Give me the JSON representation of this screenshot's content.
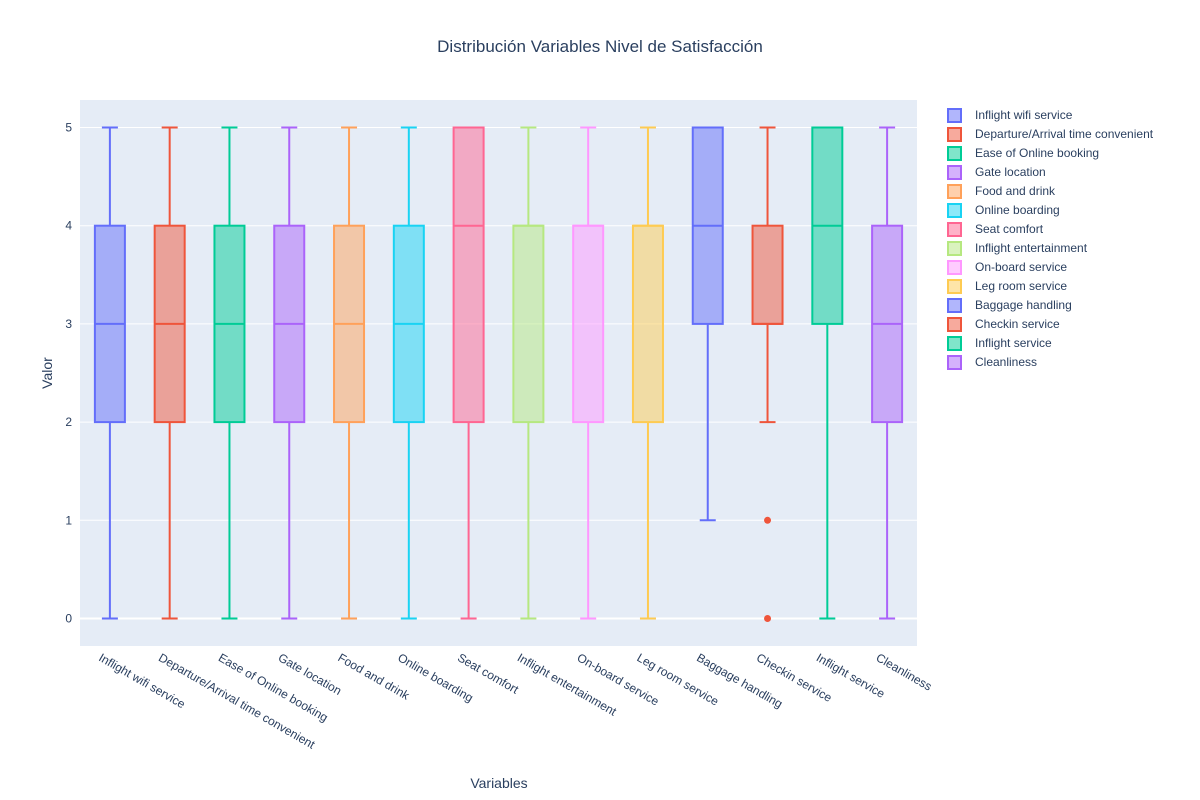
{
  "chart_data": {
    "type": "box",
    "title": "Distribución Variables Nivel de Satisfacción",
    "xlabel": "Variables",
    "ylabel": "Valor",
    "ylim": [
      -0.28,
      5.28
    ],
    "yticks": [
      0,
      1,
      2,
      3,
      4,
      5
    ],
    "grid": true,
    "legend_position": "right",
    "series": [
      {
        "name": "Inflight wifi service",
        "color": "#636efa",
        "min": 0,
        "q1": 2,
        "median": 3,
        "q3": 4,
        "max": 5,
        "outliers": []
      },
      {
        "name": "Departure/Arrival time convenient",
        "color": "#EF553B",
        "min": 0,
        "q1": 2,
        "median": 3,
        "q3": 4,
        "max": 5,
        "outliers": []
      },
      {
        "name": "Ease of Online booking",
        "color": "#00cc96",
        "min": 0,
        "q1": 2,
        "median": 3,
        "q3": 4,
        "max": 5,
        "outliers": []
      },
      {
        "name": "Gate location",
        "color": "#ab63fa",
        "min": 0,
        "q1": 2,
        "median": 3,
        "q3": 4,
        "max": 5,
        "outliers": []
      },
      {
        "name": "Food and drink",
        "color": "#FFA15A",
        "min": 0,
        "q1": 2,
        "median": 3,
        "q3": 4,
        "max": 5,
        "outliers": []
      },
      {
        "name": "Online boarding",
        "color": "#19d3f3",
        "min": 0,
        "q1": 2,
        "median": 3,
        "q3": 4,
        "max": 5,
        "outliers": []
      },
      {
        "name": "Seat comfort",
        "color": "#FF6692",
        "min": 0,
        "q1": 2,
        "median": 4,
        "q3": 5,
        "max": 5,
        "outliers": []
      },
      {
        "name": "Inflight entertainment",
        "color": "#B6E880",
        "min": 0,
        "q1": 2,
        "median": 4,
        "q3": 4,
        "max": 5,
        "outliers": []
      },
      {
        "name": "On-board service",
        "color": "#FF97FF",
        "min": 0,
        "q1": 2,
        "median": 4,
        "q3": 4,
        "max": 5,
        "outliers": []
      },
      {
        "name": "Leg room service",
        "color": "#FECB52",
        "min": 0,
        "q1": 2,
        "median": 4,
        "q3": 4,
        "max": 5,
        "outliers": []
      },
      {
        "name": "Baggage handling",
        "color": "#636efa",
        "min": 1,
        "q1": 3,
        "median": 4,
        "q3": 5,
        "max": 5,
        "outliers": []
      },
      {
        "name": "Checkin service",
        "color": "#EF553B",
        "min": 2,
        "q1": 3,
        "median": 3,
        "q3": 4,
        "max": 5,
        "outliers": [
          1,
          0
        ]
      },
      {
        "name": "Inflight service",
        "color": "#00cc96",
        "min": 0,
        "q1": 3,
        "median": 4,
        "q3": 5,
        "max": 5,
        "outliers": []
      },
      {
        "name": "Cleanliness",
        "color": "#ab63fa",
        "min": 0,
        "q1": 2,
        "median": 3,
        "q3": 4,
        "max": 5,
        "outliers": []
      }
    ]
  }
}
